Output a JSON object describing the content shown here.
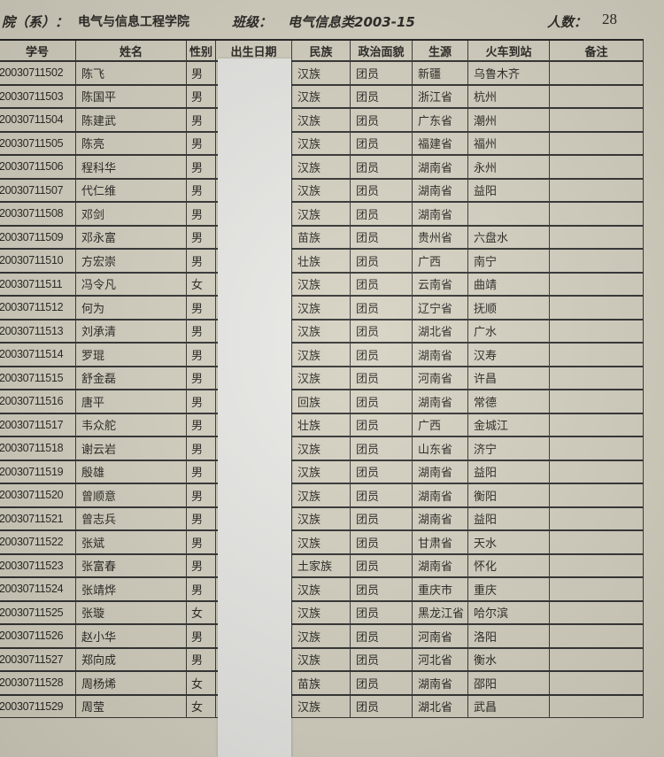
{
  "header": {
    "dept_label": "院（系）：",
    "dept_value": "电气与信息工程学院",
    "class_label": "班级：",
    "class_value": "电气信息类2003-15",
    "count_label": "人数：",
    "count_value": "28"
  },
  "table": {
    "columns": [
      "学号",
      "姓名",
      "性别",
      "出生日期",
      "民族",
      "政治面貌",
      "生源",
      "火车到站",
      "备注"
    ],
    "rows": [
      [
        "20030711502",
        "陈飞",
        "男",
        "",
        "汉族",
        "团员",
        "新疆",
        "乌鲁木齐",
        ""
      ],
      [
        "20030711503",
        "陈国平",
        "男",
        "",
        "汉族",
        "团员",
        "浙江省",
        "杭州",
        ""
      ],
      [
        "20030711504",
        "陈建武",
        "男",
        "",
        "汉族",
        "团员",
        "广东省",
        "潮州",
        ""
      ],
      [
        "20030711505",
        "陈亮",
        "男",
        "",
        "汉族",
        "团员",
        "福建省",
        "福州",
        ""
      ],
      [
        "20030711506",
        "程科华",
        "男",
        "",
        "汉族",
        "团员",
        "湖南省",
        "永州",
        ""
      ],
      [
        "20030711507",
        "代仁维",
        "男",
        "",
        "汉族",
        "团员",
        "湖南省",
        "益阳",
        ""
      ],
      [
        "20030711508",
        "邓剑",
        "男",
        "",
        "汉族",
        "团员",
        "湖南省",
        "",
        ""
      ],
      [
        "20030711509",
        "邓永富",
        "男",
        "",
        "苗族",
        "团员",
        "贵州省",
        "六盘水",
        ""
      ],
      [
        "20030711510",
        "方宏崇",
        "男",
        "",
        "壮族",
        "团员",
        "广西",
        "南宁",
        ""
      ],
      [
        "20030711511",
        "冯令凡",
        "女",
        "",
        "汉族",
        "团员",
        "云南省",
        "曲靖",
        ""
      ],
      [
        "20030711512",
        "何为",
        "男",
        "",
        "汉族",
        "团员",
        "辽宁省",
        "抚顺",
        ""
      ],
      [
        "20030711513",
        "刘承清",
        "男",
        "",
        "汉族",
        "团员",
        "湖北省",
        "广水",
        ""
      ],
      [
        "20030711514",
        "罗琨",
        "男",
        "",
        "汉族",
        "团员",
        "湖南省",
        "汉寿",
        ""
      ],
      [
        "20030711515",
        "舒金磊",
        "男",
        "",
        "汉族",
        "团员",
        "河南省",
        "许昌",
        ""
      ],
      [
        "20030711516",
        "唐平",
        "男",
        "",
        "回族",
        "团员",
        "湖南省",
        "常德",
        ""
      ],
      [
        "20030711517",
        "韦众舵",
        "男",
        "",
        "壮族",
        "团员",
        "广西",
        "金城江",
        ""
      ],
      [
        "20030711518",
        "谢云岩",
        "男",
        "",
        "汉族",
        "团员",
        "山东省",
        "济宁",
        ""
      ],
      [
        "20030711519",
        "殷雄",
        "男",
        "",
        "汉族",
        "团员",
        "湖南省",
        "益阳",
        ""
      ],
      [
        "20030711520",
        "曾顺意",
        "男",
        "",
        "汉族",
        "团员",
        "湖南省",
        "衡阳",
        ""
      ],
      [
        "20030711521",
        "曾志兵",
        "男",
        "",
        "汉族",
        "团员",
        "湖南省",
        "益阳",
        ""
      ],
      [
        "20030711522",
        "张斌",
        "男",
        "",
        "汉族",
        "团员",
        "甘肃省",
        "天水",
        ""
      ],
      [
        "20030711523",
        "张富春",
        "男",
        "",
        "土家族",
        "团员",
        "湖南省",
        "怀化",
        ""
      ],
      [
        "20030711524",
        "张靖烨",
        "男",
        "",
        "汉族",
        "团员",
        "重庆市",
        "重庆",
        ""
      ],
      [
        "20030711525",
        "张璇",
        "女",
        "",
        "汉族",
        "团员",
        "黑龙江省",
        "哈尔滨",
        ""
      ],
      [
        "20030711526",
        "赵小华",
        "男",
        "",
        "汉族",
        "团员",
        "河南省",
        "洛阳",
        ""
      ],
      [
        "20030711527",
        "郑向成",
        "男",
        "",
        "汉族",
        "团员",
        "河北省",
        "衡水",
        ""
      ],
      [
        "20030711528",
        "周杨烯",
        "女",
        "",
        "苗族",
        "团员",
        "湖南省",
        "邵阳",
        ""
      ],
      [
        "20030711529",
        "周莹",
        "女",
        "",
        "汉族",
        "团员",
        "湖北省",
        "武昌",
        ""
      ]
    ]
  }
}
